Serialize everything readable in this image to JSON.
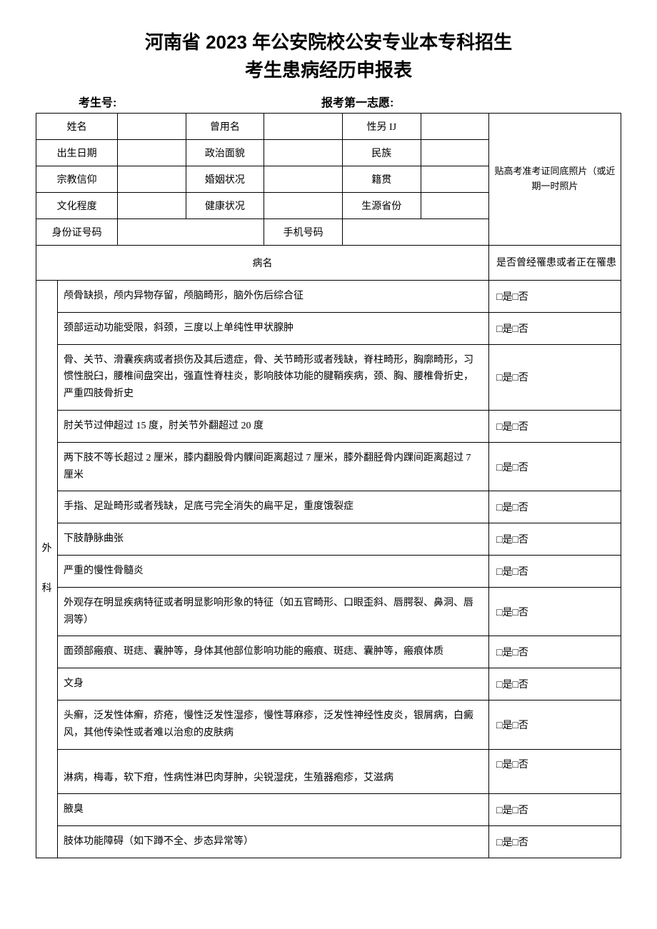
{
  "title_line1": "河南省 2023 年公安院校公安专业本专科招生",
  "title_line2": "考生患病经历申报表",
  "header": {
    "exam_id_label": "考生号:",
    "first_choice_label": "报考第一志愿:"
  },
  "info": {
    "name_label": "姓名",
    "former_name_label": "曾用名",
    "gender_label": "性另 IJ",
    "birth_date_label": "出生日期",
    "political_label": "政治面貌",
    "ethnicity_label": "民族",
    "religion_label": "宗教信仰",
    "marital_label": "婚姻状况",
    "native_place_label": "籍贯",
    "education_label": "文化程度",
    "health_label": "健康状况",
    "source_province_label": "生源省份",
    "id_number_label": "身份证号码",
    "phone_label": "手机号码",
    "photo_text": "贴高考准考证同底照片（或近期一时照片"
  },
  "disease_header": {
    "name_label": "病名",
    "check_label": "是否曾经罹患或者正在罹患"
  },
  "category_surgery": "外科",
  "checkbox_text": "□是□否",
  "diseases": [
    "颅骨缺损，颅内异物存留，颅脑畸形，脑外伤后综合征",
    "颈部运动功能受限，斜颈，三度以上单纯性甲状腺肿",
    "骨、关节、滑囊疾病或者损伤及其后遗症，骨、关节畸形或者残缺，脊柱畸形，胸廓畸形，习惯性脱臼，腰椎间盘突出，强直性脊柱炎，影响肢体功能的腱鞘疾病，颈、胸、腰椎骨折史，严重四肢骨折史",
    "肘关节过伸超过 15 度，肘关节外翻超过 20 度",
    "两下肢不等长超过 2 厘米，膝内翻股骨内髁间距离超过 7 厘米，膝外翻胫骨内踝间距离超过 7 厘米",
    "手指、足趾畸形或者残缺，足底弓完全消失的扁平足，重度饿裂症",
    "下肢静脉曲张",
    "严重的慢性骨髓炎",
    "外观存在明显疾病特征或者明显影响形象的特征（如五官畸形、口眼歪斜、唇腭裂、鼻洞、唇洞等）",
    "面颈部瘢痕、斑痣、囊肿等，身体其他部位影响功能的瘢痕、斑痣、囊肿等，瘢痕体质",
    "文身",
    "头癣，泛发性体癣，疥疮，慢性泛发性湿疹，慢性荨麻疹，泛发性神经性皮炎，银屑病，白癜风，其他传染性或者难以治愈的皮肤病",
    "淋病，梅毒，软下疳，性病性淋巴肉芽肿，尖锐湿疣，生殖器疱疹，艾滋病",
    "腋臭",
    "肢体功能障碍（如下蹲不全、步态异常等）"
  ]
}
